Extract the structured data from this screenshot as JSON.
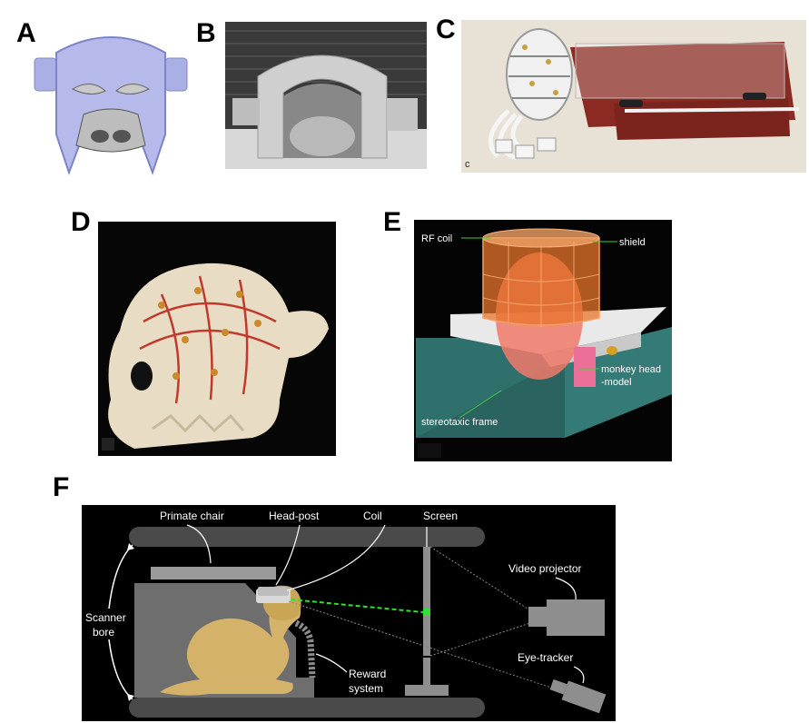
{
  "panels": {
    "a": {
      "letter": "A"
    },
    "b": {
      "letter": "B"
    },
    "c": {
      "letter": "C",
      "corner_label": "c"
    },
    "d": {
      "letter": "D"
    },
    "e": {
      "letter": "E",
      "labels": {
        "rf_coil": "RF coil",
        "shield": "shield",
        "monkey_head_1": "monkey head",
        "monkey_head_2": "-model",
        "stereotaxic_frame": "stereotaxic frame"
      }
    },
    "f": {
      "letter": "F",
      "labels": {
        "primate_chair": "Primate chair",
        "head_post": "Head-post",
        "coil": "Coil",
        "screen": "Screen",
        "video_projector": "Video projector",
        "scanner_bore_1": "Scanner",
        "scanner_bore_2": "bore",
        "eye_tracker": "Eye-tracker",
        "reward_system_1": "Reward",
        "reward_system_2": "system"
      }
    }
  },
  "colors": {
    "background": "#ffffff",
    "panel_f_bg": "#000000",
    "monkey": "#d4b26a",
    "gaze_line": "#33dd33",
    "coil_orange": "#e8742c",
    "frame_teal": "#2f6f6c",
    "board_red": "#8a2a22"
  }
}
